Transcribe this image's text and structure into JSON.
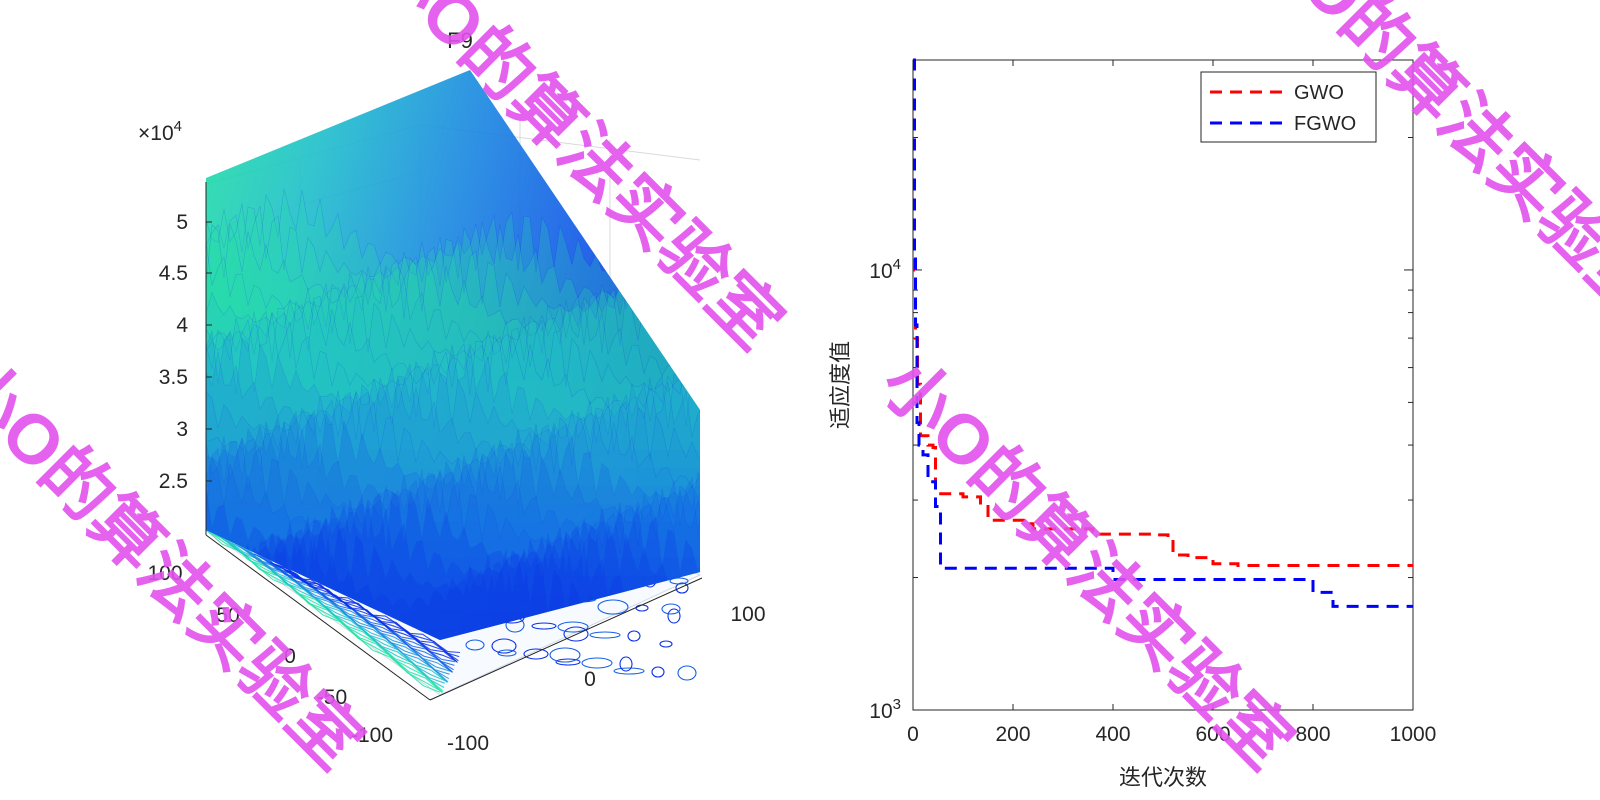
{
  "chart_data": [
    {
      "type": "surface",
      "title": "F9",
      "z_exponent_label": "×10",
      "z_exponent_power": "4",
      "x_ticks": [
        "-100",
        "0",
        "100"
      ],
      "y_ticks": [
        "100",
        "50",
        "0",
        "-50",
        "-100"
      ],
      "z_ticks": [
        "5",
        "4.5",
        "4",
        "3.5",
        "3",
        "2.5"
      ],
      "colormap": [
        "#0b2fe8",
        "#1560e6",
        "#1e8ee0",
        "#22bfcc",
        "#24e0a4"
      ]
    },
    {
      "type": "line",
      "ylabel": "适应度值",
      "xlabel": "迭代次数",
      "y_scale": "log",
      "xlim": [
        0,
        1000
      ],
      "ylim": [
        1000,
        30000
      ],
      "x_ticks": [
        "0",
        "200",
        "400",
        "600",
        "800",
        "1000"
      ],
      "y_tick_base": "10",
      "y_ticks": [
        {
          "value": 1000,
          "power": "3"
        },
        {
          "value": 10000,
          "power": "4"
        }
      ],
      "legend_position": "top-right",
      "series": [
        {
          "name": "GWO",
          "color": "#ff0000",
          "step": true,
          "points": [
            [
              0,
              30000
            ],
            [
              3,
              10000
            ],
            [
              5,
              7000
            ],
            [
              9,
              5500
            ],
            [
              15,
              4200
            ],
            [
              30,
              4000
            ],
            [
              40,
              3950
            ],
            [
              45,
              3100
            ],
            [
              100,
              3050
            ],
            [
              135,
              2900
            ],
            [
              150,
              2700
            ],
            [
              230,
              2650
            ],
            [
              240,
              2580
            ],
            [
              360,
              2550
            ],
            [
              370,
              2510
            ],
            [
              480,
              2500
            ],
            [
              510,
              2450
            ],
            [
              520,
              2250
            ],
            [
              550,
              2220
            ],
            [
              600,
              2150
            ],
            [
              650,
              2130
            ],
            [
              1000,
              2130
            ]
          ]
        },
        {
          "name": "FGWO",
          "color": "#0000ff",
          "step": true,
          "points": [
            [
              0,
              30000
            ],
            [
              3,
              11000
            ],
            [
              5,
              7500
            ],
            [
              8,
              4500
            ],
            [
              12,
              4000
            ],
            [
              20,
              3800
            ],
            [
              30,
              3300
            ],
            [
              45,
              2900
            ],
            [
              55,
              2100
            ],
            [
              380,
              2100
            ],
            [
              400,
              1980
            ],
            [
              760,
              1980
            ],
            [
              800,
              1850
            ],
            [
              830,
              1850
            ],
            [
              840,
              1720
            ],
            [
              1000,
              1720
            ]
          ]
        }
      ]
    }
  ],
  "watermarks": [
    "小O的算法实验室",
    "小O的算法实验室",
    "小O的算法实验室",
    "小O的算法实验室"
  ],
  "watermark_color": "#e252ec"
}
